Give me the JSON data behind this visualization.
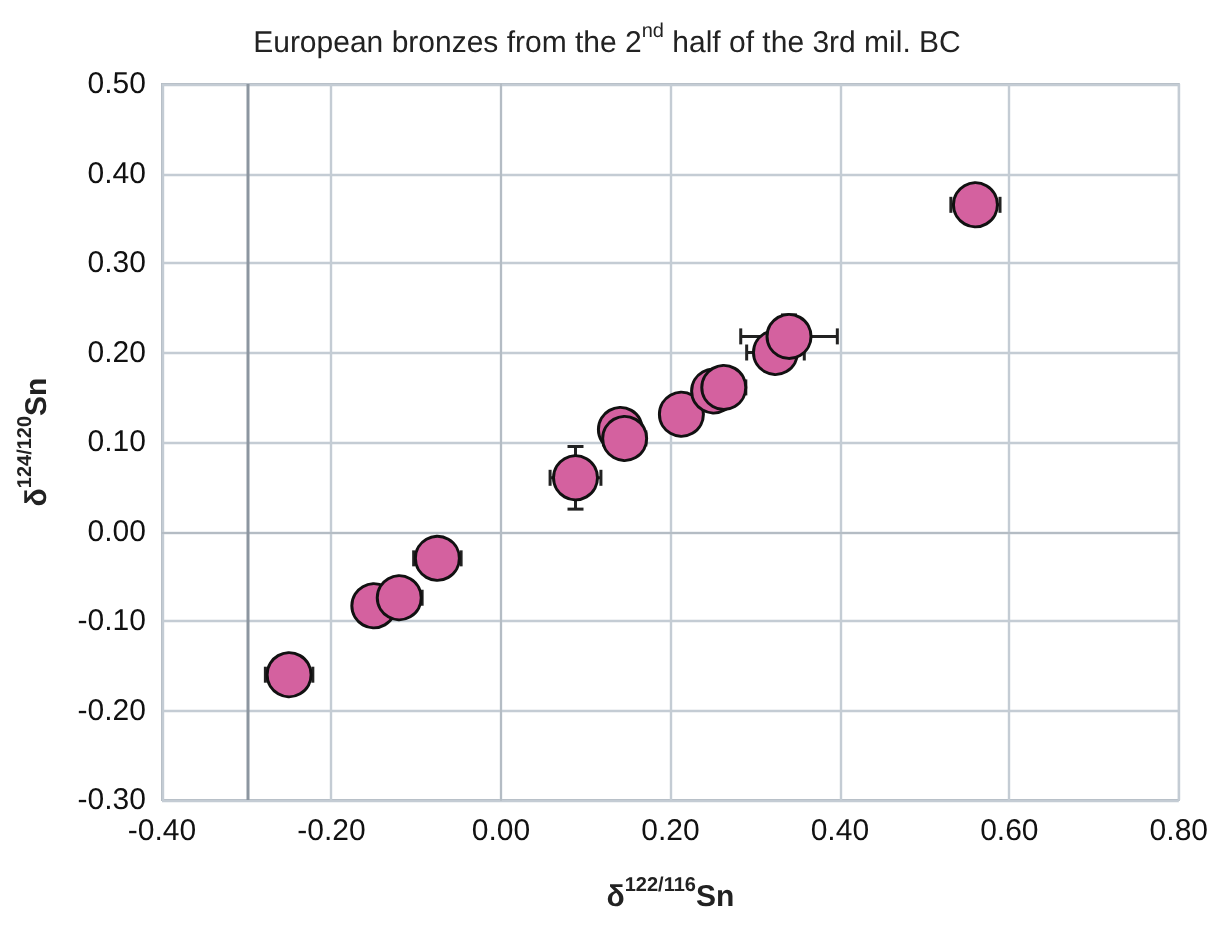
{
  "chart_data": {
    "type": "scatter",
    "title": "European bronzes from the 2$^{nd}$ half of the 3rd mil. BC",
    "xlabel": "δ$^{122/116}$Sn",
    "ylabel": "δ$^{124/120}$Sn",
    "x": [
      -0.25,
      -0.15,
      -0.12,
      -0.075,
      0.088,
      0.141,
      0.146,
      0.213,
      0.251,
      0.263,
      0.324,
      0.34,
      0.56
    ],
    "series": [
      {
        "color": "#d4619f",
        "values": [
          -0.16,
          -0.083,
          -0.074,
          -0.03,
          0.06,
          0.114,
          0.104,
          0.131,
          0.157,
          0.161,
          0.2,
          0.218,
          0.365
        ],
        "errors": [
          null,
          null,
          null,
          null,
          0.035,
          null,
          null,
          null,
          null,
          null,
          null,
          0.024,
          null
        ],
        "xerrors": [
          0.028,
          null,
          0.027,
          0.028,
          0.03,
          null,
          0.025,
          null,
          null,
          0.026,
          0.034,
          0.057,
          0.029
        ]
      }
    ],
    "marker": "circle",
    "grid": true,
    "xlim": [
      -0.4,
      0.8
    ],
    "xticks": [
      {
        "value": -0.4,
        "label": "-0.40"
      },
      {
        "value": -0.2,
        "label": "-0.20"
      },
      {
        "value": 0,
        "label": "0.00"
      },
      {
        "value": 0.2,
        "label": "0.20"
      },
      {
        "value": 0.4,
        "label": "0.40"
      },
      {
        "value": 0.6,
        "label": "0.60"
      },
      {
        "value": 0.8,
        "label": "0.80"
      }
    ],
    "ylim": [
      -0.3,
      0.5
    ],
    "yticks": [
      {
        "value": -0.3,
        "label": "-0.30"
      },
      {
        "value": -0.2,
        "label": "-0.20"
      },
      {
        "value": -0.1,
        "label": "-0.10"
      },
      {
        "value": 0,
        "label": "0.00"
      },
      {
        "value": 0.1,
        "label": "0.10"
      },
      {
        "value": 0.2,
        "label": "0.20"
      },
      {
        "value": 0.3,
        "label": "0.30"
      },
      {
        "value": 0.4,
        "label": "0.40"
      },
      {
        "value": 0.5,
        "label": "0.50"
      }
    ],
    "ref_lines": [
      {
        "axis": "x",
        "value": -0.3,
        "color": "#8c96a0"
      }
    ]
  }
}
